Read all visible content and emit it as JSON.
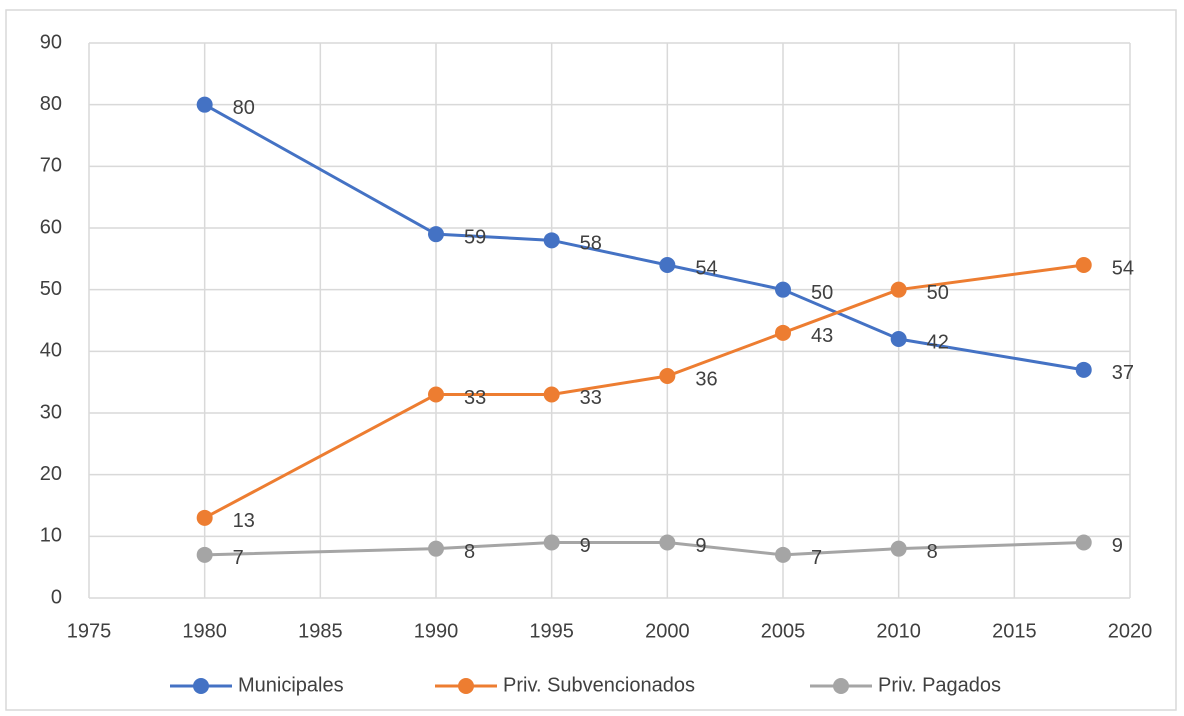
{
  "chart_data": {
    "type": "line",
    "x": [
      1980,
      1990,
      1995,
      2000,
      2005,
      2010,
      2018
    ],
    "series": [
      {
        "name": "Municipales",
        "color": "#4472c4",
        "values": [
          80,
          59,
          58,
          54,
          50,
          42,
          37
        ]
      },
      {
        "name": "Priv. Subvencionados",
        "color": "#ed7d31",
        "values": [
          13,
          33,
          33,
          36,
          43,
          50,
          54
        ]
      },
      {
        "name": "Priv. Pagados",
        "color": "#a5a5a5",
        "values": [
          7,
          8,
          9,
          9,
          7,
          8,
          9
        ]
      }
    ],
    "xlim": [
      1975,
      2020
    ],
    "xticks": [
      1975,
      1980,
      1985,
      1990,
      1995,
      2000,
      2005,
      2010,
      2015,
      2020
    ],
    "ylim": [
      0,
      90
    ],
    "yticks": [
      0,
      10,
      20,
      30,
      40,
      50,
      60,
      70,
      80,
      90
    ],
    "grid": true,
    "legend": "bottom"
  }
}
